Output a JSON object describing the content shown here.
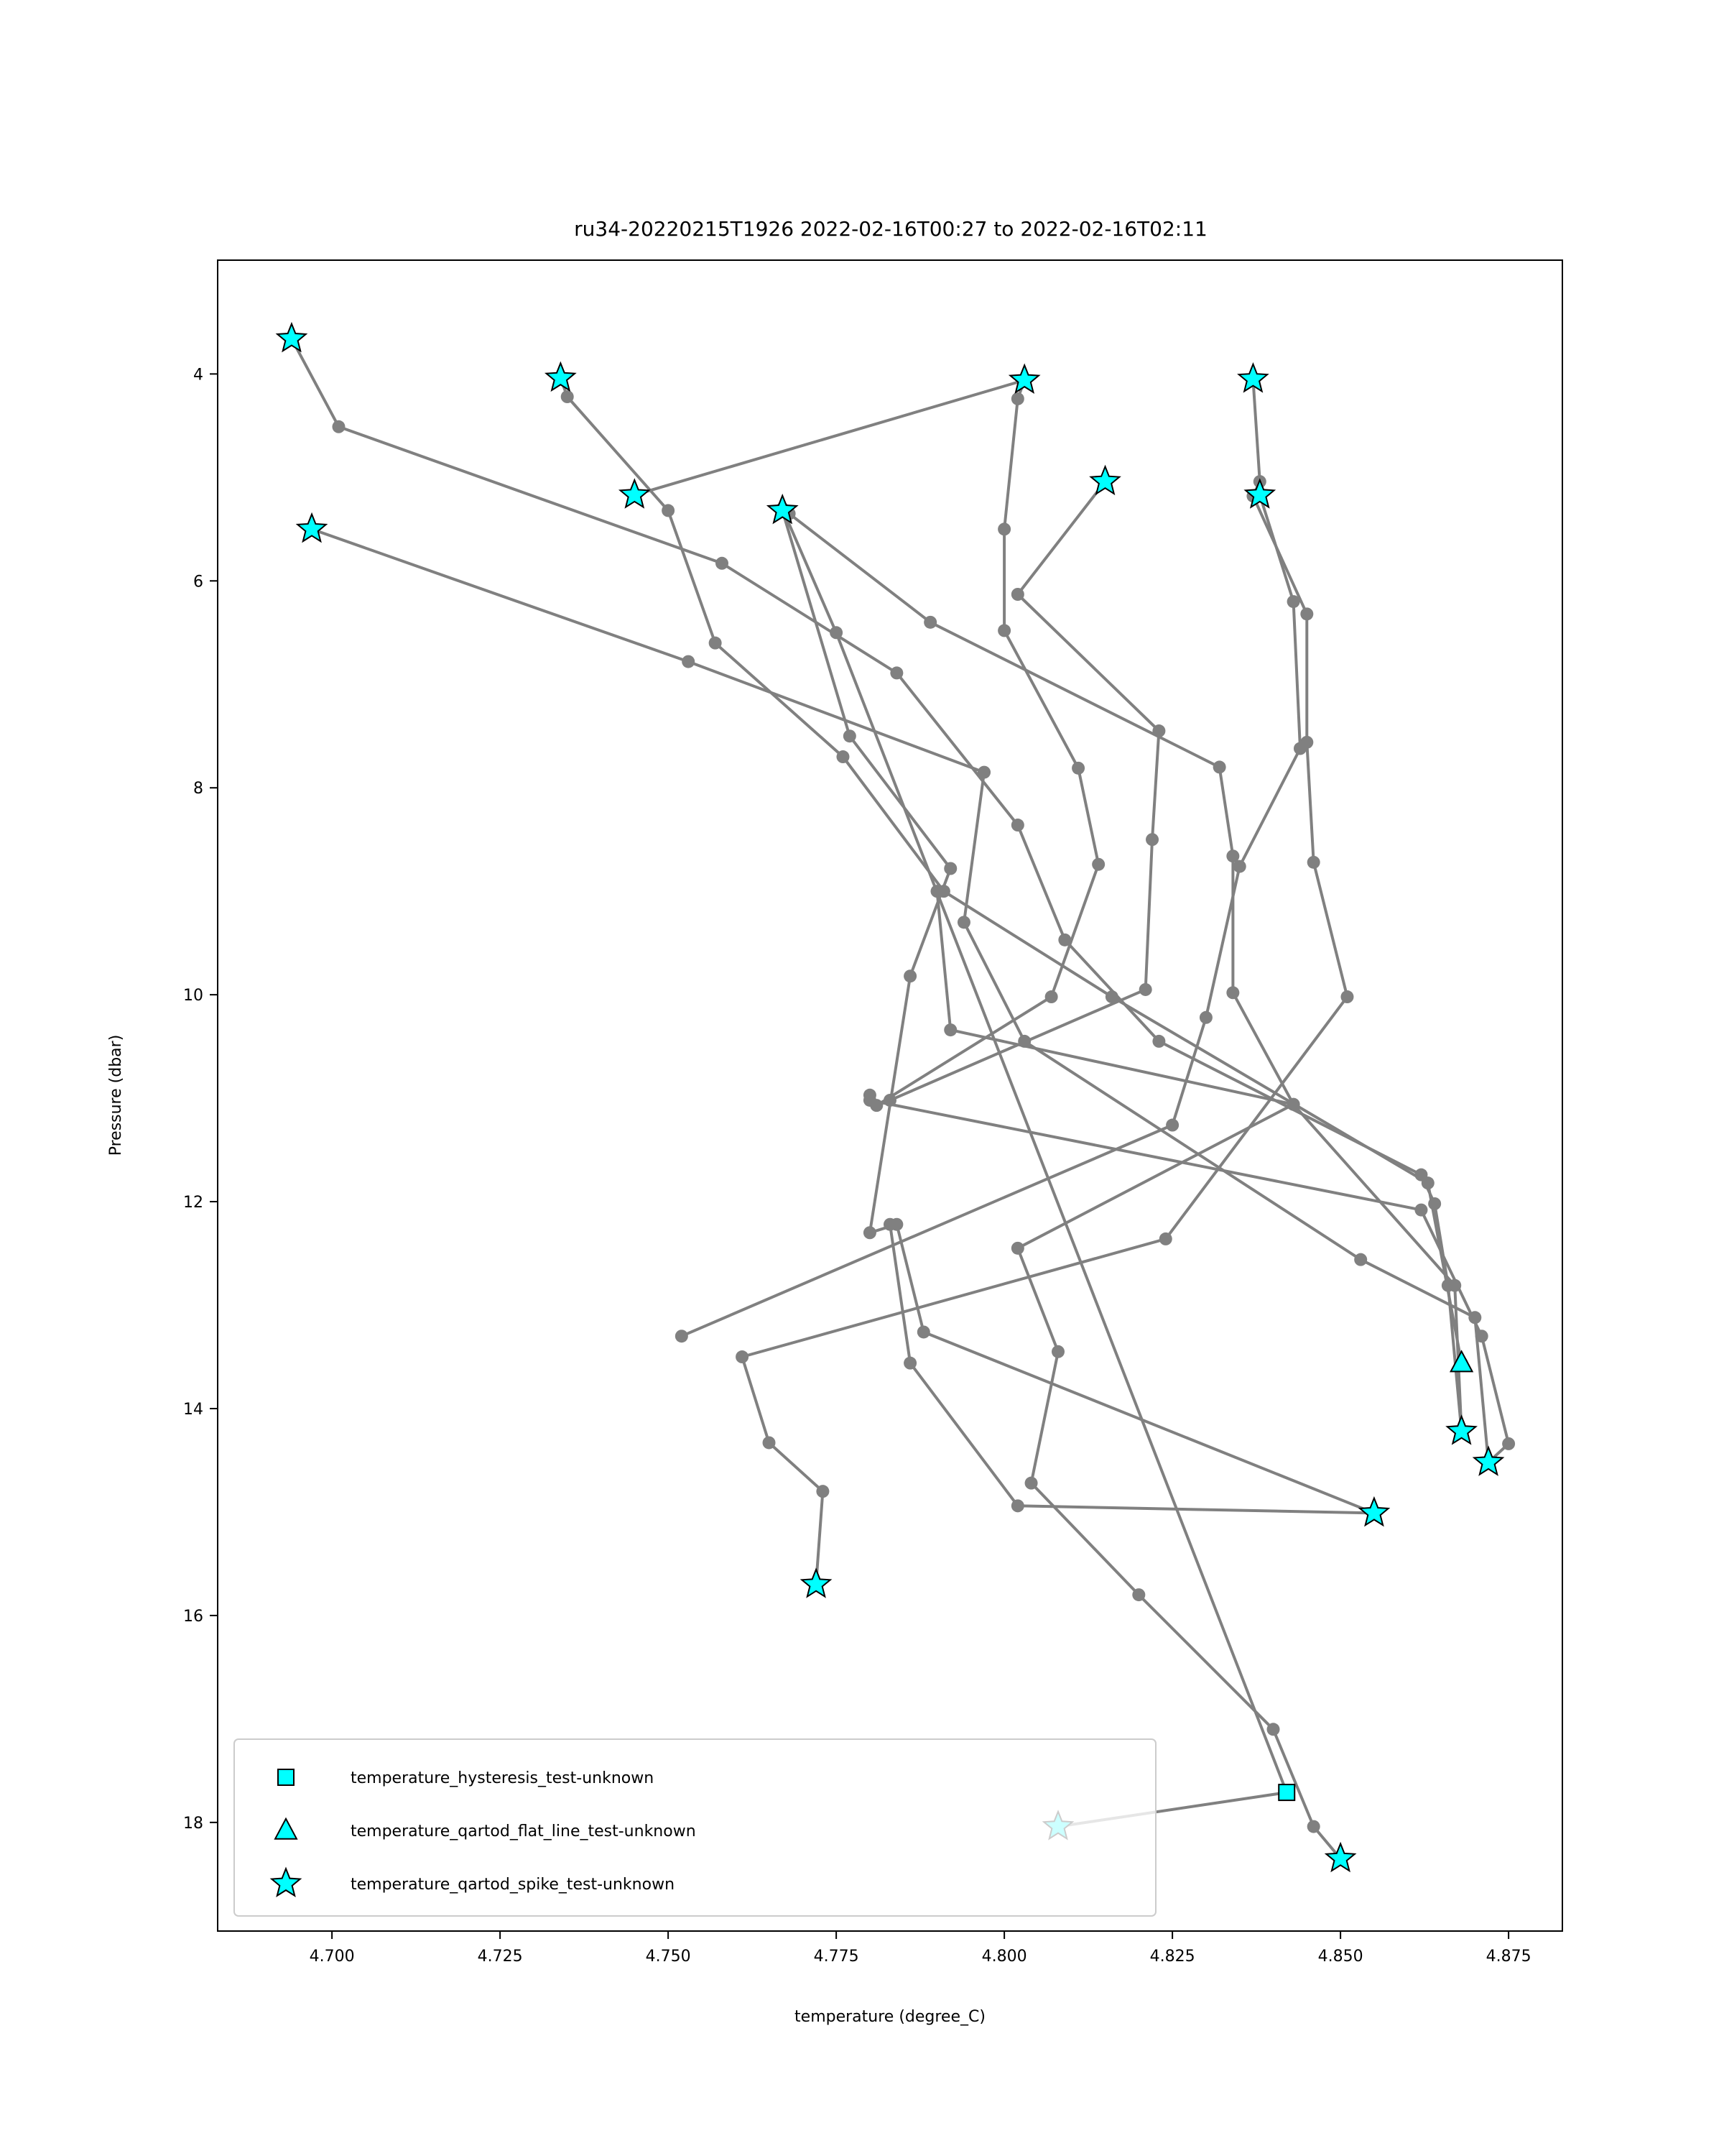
{
  "chart_data": {
    "type": "line",
    "title": "ru34-20220215T1926 2022-02-16T00:27 to 2022-02-16T02:11",
    "xlabel": "temperature (degree_C)",
    "ylabel": "Pressure (dbar)",
    "xlim": [
      4.683,
      4.883
    ],
    "ylim": [
      19.05,
      2.9
    ],
    "xticks": [
      4.7,
      4.725,
      4.75,
      4.775,
      4.8,
      4.825,
      4.85,
      4.875
    ],
    "xtick_labels": [
      "4.700",
      "4.725",
      "4.750",
      "4.775",
      "4.800",
      "4.825",
      "4.850",
      "4.875"
    ],
    "yticks": [
      4,
      6,
      8,
      10,
      12,
      14,
      16,
      18
    ],
    "ytick_labels": [
      "4",
      "6",
      "8",
      "10",
      "12",
      "14",
      "16",
      "18"
    ],
    "grid": false,
    "legend_position": "lower-left",
    "colors": {
      "line": "#808080",
      "marker": "#00ffff",
      "marker_edge": "#000000"
    },
    "series": [
      {
        "values": [
          [
            4.694,
            3.66
          ],
          [
            4.701,
            4.51
          ],
          [
            4.758,
            5.83
          ],
          [
            4.784,
            6.89
          ],
          [
            4.802,
            8.36
          ],
          [
            4.809,
            9.47
          ],
          [
            4.823,
            10.45
          ],
          [
            4.862,
            11.74
          ],
          [
            4.864,
            12.02
          ],
          [
            4.866,
            12.81
          ],
          [
            4.868,
            14.22
          ]
        ]
      },
      {
        "values": [
          [
            4.697,
            5.5
          ],
          [
            4.753,
            6.78
          ],
          [
            4.797,
            7.85
          ],
          [
            4.794,
            9.3
          ],
          [
            4.803,
            10.45
          ],
          [
            4.853,
            12.56
          ],
          [
            4.87,
            13.12
          ],
          [
            4.872,
            14.52
          ]
        ]
      },
      {
        "values": [
          [
            4.734,
            4.04
          ],
          [
            4.735,
            4.22
          ],
          [
            4.75,
            5.32
          ],
          [
            4.757,
            6.6
          ],
          [
            4.776,
            7.7
          ],
          [
            4.791,
            9.0
          ],
          [
            4.816,
            10.02
          ],
          [
            4.863,
            11.82
          ],
          [
            4.868,
            13.56
          ]
        ]
      },
      {
        "values": [
          [
            4.745,
            5.17
          ],
          [
            4.803,
            4.06
          ],
          [
            4.802,
            4.24
          ],
          [
            4.8,
            5.5
          ],
          [
            4.8,
            6.48
          ],
          [
            4.811,
            7.81
          ],
          [
            4.814,
            8.74
          ],
          [
            4.807,
            10.02
          ],
          [
            4.781,
            11.07
          ],
          [
            4.783,
            11.02
          ],
          [
            4.821,
            9.95
          ],
          [
            4.822,
            8.5
          ],
          [
            4.823,
            7.45
          ],
          [
            4.802,
            6.13
          ],
          [
            4.815,
            5.04
          ]
        ]
      },
      {
        "values": [
          [
            4.767,
            5.32
          ],
          [
            4.777,
            7.5
          ],
          [
            4.792,
            8.78
          ],
          [
            4.786,
            9.82
          ],
          [
            4.78,
            12.3
          ],
          [
            4.784,
            12.22
          ],
          [
            4.788,
            13.26
          ],
          [
            4.855,
            15.01
          ]
        ]
      },
      {
        "values": [
          [
            4.768,
            5.35
          ],
          [
            4.789,
            6.4
          ],
          [
            4.832,
            7.8
          ],
          [
            4.834,
            8.66
          ],
          [
            4.834,
            9.98
          ],
          [
            4.843,
            11.06
          ],
          [
            4.802,
            12.45
          ],
          [
            4.808,
            13.45
          ],
          [
            4.804,
            14.72
          ],
          [
            4.82,
            15.8
          ],
          [
            4.84,
            17.1
          ],
          [
            4.846,
            18.04
          ],
          [
            4.85,
            18.35
          ]
        ]
      },
      {
        "values": [
          [
            4.767,
            5.3
          ],
          [
            4.775,
            6.5
          ],
          [
            4.842,
            17.71
          ],
          [
            4.808,
            18.04
          ]
        ]
      },
      {
        "values": [
          [
            4.837,
            4.05
          ],
          [
            4.838,
            5.04
          ],
          [
            4.837,
            5.18
          ],
          [
            4.845,
            6.32
          ],
          [
            4.845,
            7.56
          ],
          [
            4.846,
            8.72
          ],
          [
            4.851,
            10.02
          ],
          [
            4.824,
            12.36
          ],
          [
            4.761,
            13.5
          ],
          [
            4.765,
            14.33
          ],
          [
            4.773,
            14.8
          ],
          [
            4.772,
            15.7
          ]
        ]
      },
      {
        "values": [
          [
            4.838,
            5.17
          ],
          [
            4.843,
            6.2
          ],
          [
            4.844,
            7.62
          ],
          [
            4.835,
            8.76
          ],
          [
            4.83,
            10.22
          ],
          [
            4.825,
            11.26
          ],
          [
            4.752,
            13.3
          ]
        ]
      },
      {
        "values": [
          [
            4.78,
            10.97
          ],
          [
            4.78,
            11.02
          ],
          [
            4.862,
            12.08
          ],
          [
            4.871,
            13.3
          ],
          [
            4.875,
            14.34
          ],
          [
            4.872,
            14.52
          ]
        ]
      },
      {
        "values": [
          [
            4.783,
            12.22
          ],
          [
            4.786,
            13.56
          ],
          [
            4.802,
            14.94
          ],
          [
            4.855,
            15.01
          ]
        ]
      },
      {
        "values": [
          [
            4.79,
            9.0
          ],
          [
            4.792,
            10.34
          ],
          [
            4.843,
            11.06
          ],
          [
            4.867,
            12.81
          ],
          [
            4.868,
            14.22
          ]
        ]
      }
    ],
    "flags": [
      {
        "test": "temperature_hysteresis_test-unknown",
        "marker": "square",
        "points": [
          [
            4.842,
            17.71
          ]
        ]
      },
      {
        "test": "temperature_qartod_flat_line_test-unknown",
        "marker": "triangle",
        "points": [
          [
            4.868,
            13.56
          ]
        ]
      },
      {
        "test": "temperature_qartod_spike_test-unknown",
        "marker": "star",
        "points": [
          [
            4.694,
            3.66
          ],
          [
            4.734,
            4.04
          ],
          [
            4.803,
            4.06
          ],
          [
            4.837,
            4.05
          ],
          [
            4.815,
            5.04
          ],
          [
            4.745,
            5.17
          ],
          [
            4.838,
            5.17
          ],
          [
            4.767,
            5.32
          ],
          [
            4.697,
            5.5
          ],
          [
            4.868,
            14.22
          ],
          [
            4.872,
            14.52
          ],
          [
            4.855,
            15.01
          ],
          [
            4.772,
            15.7
          ],
          [
            4.808,
            18.04
          ],
          [
            4.85,
            18.35
          ]
        ]
      }
    ],
    "legend": [
      {
        "label": "temperature_hysteresis_test-unknown",
        "marker": "square"
      },
      {
        "label": "temperature_qartod_flat_line_test-unknown",
        "marker": "triangle"
      },
      {
        "label": "temperature_qartod_spike_test-unknown",
        "marker": "star"
      }
    ]
  }
}
